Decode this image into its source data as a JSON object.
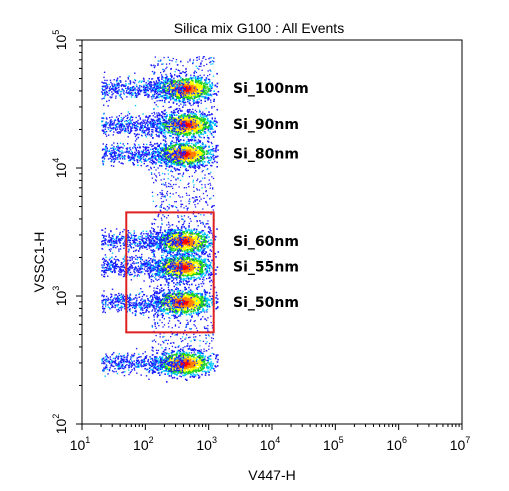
{
  "chart_data": {
    "type": "scatter",
    "title": "Silica mix G100 : All Events",
    "xlabel": "V447-H",
    "ylabel": "VSSC1-H",
    "x_scale": "log",
    "y_scale": "log",
    "xlim": [
      10,
      10000000
    ],
    "ylim": [
      100,
      100000
    ],
    "x_ticks": [
      {
        "base": "10",
        "exp": "1",
        "value": 10
      },
      {
        "base": "10",
        "exp": "2",
        "value": 100
      },
      {
        "base": "10",
        "exp": "3",
        "value": 1000
      },
      {
        "base": "10",
        "exp": "4",
        "value": 10000
      },
      {
        "base": "10",
        "exp": "5",
        "value": 100000
      },
      {
        "base": "10",
        "exp": "6",
        "value": 1000000
      },
      {
        "base": "10",
        "exp": "7",
        "value": 10000000
      }
    ],
    "y_ticks": [
      {
        "base": "10",
        "exp": "2",
        "value": 100
      },
      {
        "base": "10",
        "exp": "3",
        "value": 1000
      },
      {
        "base": "10",
        "exp": "4",
        "value": 10000
      },
      {
        "base": "10",
        "exp": "5",
        "value": 100000
      }
    ],
    "populations": [
      {
        "label": "Si_100nm",
        "x": 420,
        "y": 42000
      },
      {
        "label": "Si_90nm",
        "x": 420,
        "y": 22000
      },
      {
        "label": "Si_80nm",
        "x": 400,
        "y": 13000
      },
      {
        "label": "Si_60nm",
        "x": 390,
        "y": 2700
      },
      {
        "label": "Si_55nm",
        "x": 380,
        "y": 1700
      },
      {
        "label": "Si_50nm",
        "x": 380,
        "y": 900
      },
      {
        "label": "",
        "x": 400,
        "y": 300
      }
    ],
    "gate": {
      "x_range": [
        50,
        1200
      ],
      "y_range": [
        520,
        4500
      ],
      "color": "#e02020"
    },
    "grid": false,
    "colormap": [
      "#1a1aff",
      "#00c8ff",
      "#20d020",
      "#ffff00",
      "#ff8000",
      "#ff0000"
    ]
  }
}
